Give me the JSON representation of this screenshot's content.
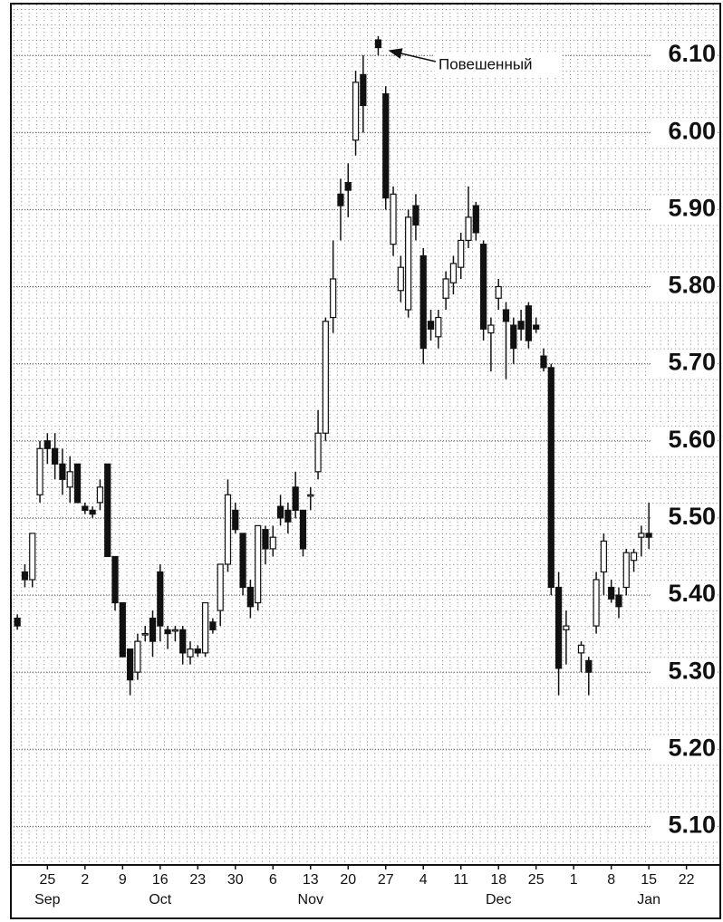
{
  "chart_data": {
    "type": "candlestick",
    "annotation": "Повешенный",
    "categories": [
      null,
      null,
      null,
      null,
      "25",
      null,
      null,
      null,
      null,
      "2",
      null,
      null,
      null,
      null,
      "9",
      null,
      null,
      null,
      null,
      "16",
      null,
      null,
      null,
      null,
      "23",
      null,
      null,
      null,
      null,
      "30",
      null,
      null,
      null,
      null,
      "6",
      null,
      null,
      null,
      null,
      "13",
      null,
      null,
      null,
      null,
      "20",
      null,
      null,
      null,
      null,
      "27",
      null,
      null,
      null,
      null,
      "4",
      null,
      null,
      null,
      null,
      "11",
      null,
      null,
      null,
      null,
      "18",
      null,
      null,
      null,
      null,
      "25",
      null,
      null,
      null,
      null,
      "1",
      null,
      null,
      null,
      null,
      "8",
      null,
      null,
      null,
      null,
      "15",
      null,
      null,
      null,
      null,
      "22",
      null,
      null,
      null,
      null
    ],
    "months": [
      null,
      null,
      null,
      null,
      "Sep",
      null,
      null,
      null,
      null,
      null,
      null,
      null,
      null,
      null,
      null,
      null,
      null,
      null,
      null,
      "Oct",
      null,
      null,
      null,
      null,
      null,
      null,
      null,
      null,
      null,
      null,
      null,
      null,
      null,
      null,
      null,
      null,
      null,
      null,
      null,
      "Nov",
      null,
      null,
      null,
      null,
      null,
      null,
      null,
      null,
      null,
      null,
      null,
      null,
      null,
      null,
      null,
      null,
      null,
      null,
      null,
      null,
      null,
      null,
      null,
      null,
      "Dec",
      null,
      null,
      null,
      null,
      null,
      null,
      null,
      null,
      null,
      null,
      null,
      null,
      null,
      null,
      null,
      null,
      null,
      null,
      null,
      "Jan",
      null,
      null,
      null,
      null,
      null,
      null,
      null,
      null,
      null
    ],
    "open": [
      5.37,
      5.43,
      5.42,
      5.53,
      5.6,
      5.59,
      5.57,
      5.54,
      5.57,
      5.515,
      5.51,
      5.52,
      5.57,
      5.45,
      5.39,
      5.33,
      5.3,
      5.35,
      5.37,
      5.43,
      5.355,
      5.355,
      5.355,
      5.32,
      5.33,
      5.325,
      5.365,
      5.38,
      5.44,
      5.51,
      5.48,
      5.41,
      5.39,
      5.485,
      5.46,
      5.515,
      5.51,
      5.54,
      5.51,
      5.53,
      5.56,
      5.61,
      5.76,
      5.92,
      5.935,
      5.99,
      6.075,
      null,
      6.12,
      6.05,
      5.855,
      5.795,
      5.77,
      5.905,
      5.84,
      5.755,
      5.735,
      5.785,
      5.805,
      5.825,
      5.86,
      5.905,
      5.855,
      5.74,
      5.785,
      5.77,
      5.75,
      5.755,
      5.775,
      5.75,
      5.71,
      5.695,
      5.41,
      5.355,
      null,
      5.325,
      5.315,
      5.36,
      5.43,
      5.41,
      5.4,
      5.41,
      5.445,
      5.475,
      5.48,
      null,
      null,
      null,
      null,
      null,
      null,
      null,
      null,
      null
    ],
    "high": [
      5.375,
      5.44,
      5.48,
      5.6,
      5.61,
      5.61,
      5.59,
      5.58,
      5.57,
      5.52,
      5.515,
      5.55,
      5.57,
      5.45,
      5.39,
      5.33,
      5.35,
      5.36,
      5.38,
      5.44,
      5.36,
      5.36,
      5.36,
      5.34,
      5.335,
      5.39,
      5.37,
      5.44,
      5.55,
      5.52,
      5.48,
      5.42,
      5.49,
      5.49,
      5.49,
      5.53,
      5.52,
      5.56,
      5.51,
      5.54,
      5.64,
      5.76,
      5.86,
      5.94,
      5.96,
      6.08,
      6.1,
      null,
      6.125,
      6.06,
      5.93,
      5.84,
      5.9,
      5.92,
      5.85,
      5.77,
      5.77,
      5.82,
      5.84,
      5.87,
      5.93,
      5.91,
      5.86,
      5.76,
      5.81,
      5.78,
      5.76,
      5.77,
      5.78,
      5.76,
      5.72,
      5.7,
      5.43,
      5.38,
      null,
      5.34,
      5.32,
      5.43,
      5.48,
      5.42,
      5.41,
      5.46,
      5.46,
      5.49,
      5.52,
      null,
      null,
      null,
      null,
      null,
      null,
      null,
      null,
      null
    ],
    "low": [
      5.355,
      5.41,
      5.41,
      5.52,
      5.57,
      5.55,
      5.53,
      5.52,
      5.52,
      5.505,
      5.5,
      5.51,
      5.45,
      5.38,
      5.32,
      5.27,
      5.29,
      5.34,
      5.32,
      5.34,
      5.33,
      5.34,
      5.31,
      5.31,
      5.32,
      5.32,
      5.35,
      5.36,
      5.43,
      5.48,
      5.4,
      5.37,
      5.38,
      5.44,
      5.45,
      5.49,
      5.48,
      5.5,
      5.45,
      5.51,
      5.55,
      5.6,
      5.74,
      5.86,
      5.89,
      5.97,
      6.0,
      null,
      6.1,
      5.9,
      5.84,
      5.78,
      5.76,
      5.86,
      5.7,
      5.73,
      5.72,
      5.77,
      5.79,
      5.81,
      5.85,
      5.86,
      5.73,
      5.69,
      5.77,
      5.68,
      5.7,
      5.73,
      5.72,
      5.74,
      5.69,
      5.4,
      5.27,
      5.31,
      null,
      5.3,
      5.27,
      5.35,
      5.4,
      5.39,
      5.37,
      5.4,
      5.43,
      5.45,
      5.46,
      null,
      null,
      null,
      null,
      null,
      null,
      null,
      null,
      null
    ],
    "close": [
      5.36,
      5.42,
      5.48,
      5.59,
      5.59,
      5.57,
      5.55,
      5.56,
      5.52,
      5.51,
      5.505,
      5.54,
      5.45,
      5.39,
      5.32,
      5.29,
      5.34,
      5.35,
      5.34,
      5.36,
      5.35,
      5.355,
      5.325,
      5.33,
      5.325,
      5.39,
      5.355,
      5.44,
      5.53,
      5.485,
      5.41,
      5.385,
      5.49,
      5.46,
      5.475,
      5.5,
      5.495,
      5.51,
      5.46,
      5.53,
      5.61,
      5.755,
      5.81,
      5.905,
      5.925,
      6.065,
      6.035,
      null,
      6.11,
      5.915,
      5.92,
      5.825,
      5.89,
      5.88,
      5.72,
      5.745,
      5.76,
      5.81,
      5.83,
      5.86,
      5.89,
      5.87,
      5.745,
      5.75,
      5.8,
      5.755,
      5.72,
      5.745,
      5.73,
      5.745,
      5.695,
      5.41,
      5.305,
      5.36,
      null,
      5.335,
      5.3,
      5.42,
      5.47,
      5.395,
      5.385,
      5.455,
      5.455,
      5.48,
      5.475,
      null,
      null,
      null,
      null,
      null,
      null,
      null,
      null,
      null
    ],
    "ylim": [
      5.05,
      6.16
    ],
    "yticks": [
      {
        "value": 5.1,
        "label": "5.10"
      },
      {
        "value": 5.2,
        "label": "5.20"
      },
      {
        "value": 5.3,
        "label": "5.30"
      },
      {
        "value": 5.4,
        "label": "5.40"
      },
      {
        "value": 5.5,
        "label": "5.50"
      },
      {
        "value": 5.6,
        "label": "5.60"
      },
      {
        "value": 5.7,
        "label": "5.70"
      },
      {
        "value": 5.8,
        "label": "5.80"
      },
      {
        "value": 5.9,
        "label": "5.90"
      },
      {
        "value": 6.0,
        "label": "6.00"
      },
      {
        "value": 6.1,
        "label": "6.10"
      }
    ],
    "grid": true,
    "up_color": "#ffffff",
    "down_color": "#111111"
  }
}
